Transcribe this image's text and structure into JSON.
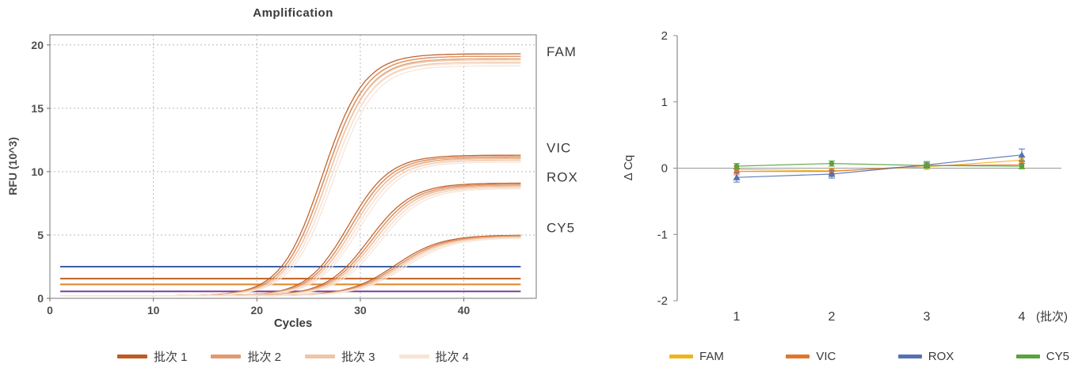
{
  "figure": {
    "amplification": {
      "title": "Amplification",
      "xlabel": "Cycles",
      "ylabel": "RFU (10^3)"
    },
    "delta_cq": {
      "ylabel": "Δ Cq",
      "x_suffix": "(批次)"
    }
  },
  "chart_data": [
    {
      "type": "line",
      "title": "Amplification",
      "xlabel": "Cycles",
      "ylabel": "RFU (10^3)",
      "xlim": [
        0,
        47
      ],
      "ylim": [
        0,
        20.8
      ],
      "xticks": [
        0,
        10,
        20,
        30,
        40
      ],
      "yticks": [
        0,
        5,
        10,
        15,
        20
      ],
      "grid": true,
      "baseline_rfu": 0.2,
      "grid_color": "#b8b8b8",
      "box_color": "#8c8c8c",
      "tick_color": "#4f4f4f",
      "curve_groups": [
        {
          "dye": "FAM",
          "plateau": 19.1,
          "midpoint_cycle": 26.5,
          "slope": 0.5,
          "label_y": 19.5
        },
        {
          "dye": "VIC",
          "plateau": 11.1,
          "midpoint_cycle": 29.0,
          "slope": 0.5,
          "label_y": 11.9
        },
        {
          "dye": "ROX",
          "plateau": 8.9,
          "midpoint_cycle": 31.0,
          "slope": 0.48,
          "label_y": 9.6
        },
        {
          "dye": "CY5",
          "plateau": 4.8,
          "midpoint_cycle": 33.5,
          "slope": 0.45,
          "label_y": 5.6
        }
      ],
      "threshold_lines": [
        {
          "rfu": 2.5,
          "color": "#3e5fa5"
        },
        {
          "rfu": 1.55,
          "color": "#c06020"
        },
        {
          "rfu": 1.1,
          "color": "#e08428"
        },
        {
          "rfu": 0.55,
          "color": "#7e3f9d"
        }
      ],
      "batches": [
        {
          "label": "批次 1",
          "color": "#bf5b21",
          "plateau_scale": 1.0,
          "cq_offset": 0.0
        },
        {
          "label": "批次 2",
          "color": "#e29a6e",
          "plateau_scale": 0.99,
          "cq_offset": 0.25
        },
        {
          "label": "批次 3",
          "color": "#eec5a7",
          "plateau_scale": 0.975,
          "cq_offset": 0.5
        },
        {
          "label": "批次 4",
          "color": "#f8e4d5",
          "plateau_scale": 0.96,
          "cq_offset": 0.75
        }
      ]
    },
    {
      "type": "scatter",
      "ylabel": "Δ Cq",
      "categories": [
        "1",
        "2",
        "3",
        "4"
      ],
      "x_suffix": "(批次)",
      "ylim": [
        -2,
        2
      ],
      "yticks": [
        2,
        1,
        0,
        -1,
        -2
      ],
      "series": [
        {
          "name": "FAM",
          "color": "#f2b31c",
          "marker": "circle",
          "values": [
            -0.02,
            -0.04,
            0.02,
            0.12
          ],
          "errors": [
            0.05,
            0.04,
            0.04,
            0.05
          ]
        },
        {
          "name": "VIC",
          "color": "#e0762c",
          "marker": "square",
          "values": [
            -0.05,
            -0.05,
            0.04,
            0.05
          ],
          "errors": [
            0.05,
            0.05,
            0.04,
            0.05
          ]
        },
        {
          "name": "ROX",
          "color": "#5571b2",
          "marker": "triangle",
          "values": [
            -0.14,
            -0.09,
            0.05,
            0.2
          ],
          "errors": [
            0.07,
            0.06,
            0.05,
            0.09
          ]
        },
        {
          "name": "CY5",
          "color": "#58a33e",
          "marker": "circle",
          "values": [
            0.03,
            0.07,
            0.04,
            0.03
          ],
          "errors": [
            0.04,
            0.04,
            0.04,
            0.04
          ]
        }
      ]
    }
  ]
}
